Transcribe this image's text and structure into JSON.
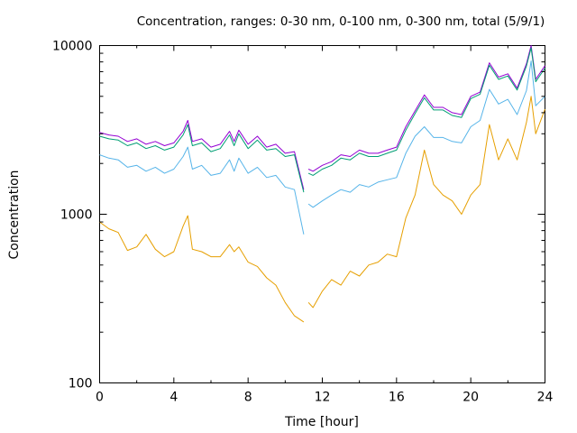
{
  "chart_data": {
    "type": "line",
    "title": "Concentration, ranges: 0-30 nm, 0-100 nm, 0-300 nm, total (5/9/1)",
    "xlabel": "Time [hour]",
    "ylabel": "Concentration",
    "xlim": [
      0,
      24
    ],
    "ylim": [
      100,
      10000
    ],
    "yscale": "log",
    "grid": false,
    "legend": "none",
    "x_ticks": [
      0,
      4,
      8,
      12,
      16,
      20,
      24
    ],
    "x_tick_labels": [
      "0",
      "4",
      "8",
      "12",
      "16",
      "20",
      "24"
    ],
    "y_ticks": [
      100,
      1000,
      10000
    ],
    "y_tick_labels": [
      "100",
      "1000",
      "10000"
    ],
    "x": [
      0,
      0.5,
      1,
      1.5,
      2,
      2.5,
      3,
      3.5,
      4,
      4.5,
      4.75,
      5,
      5.5,
      6,
      6.5,
      7,
      7.25,
      7.5,
      8,
      8.5,
      9,
      9.5,
      10,
      10.5,
      11,
      11.25,
      11.5,
      12,
      12.5,
      13,
      13.5,
      14,
      14.5,
      15,
      15.5,
      16,
      16.5,
      17,
      17.5,
      18,
      18.5,
      19,
      19.5,
      20,
      20.5,
      21,
      21.5,
      22,
      22.5,
      23,
      23.25,
      23.5,
      24
    ],
    "segment_breaks_after_x": [
      11
    ],
    "series": [
      {
        "color": "#9400d3",
        "values": [
          3050,
          2950,
          2900,
          2700,
          2800,
          2600,
          2700,
          2550,
          2650,
          3100,
          3600,
          2700,
          2800,
          2500,
          2600,
          3100,
          2700,
          3150,
          2600,
          2900,
          2500,
          2600,
          2300,
          2350,
          1400,
          1850,
          1800,
          1950,
          2050,
          2250,
          2200,
          2400,
          2300,
          2300,
          2400,
          2500,
          3300,
          4100,
          5100,
          4300,
          4300,
          4000,
          3900,
          5000,
          5300,
          7900,
          6500,
          6800,
          5600,
          7800,
          10000,
          6300,
          7600
        ]
      },
      {
        "color": "#009e73",
        "values": [
          2900,
          2800,
          2750,
          2550,
          2650,
          2450,
          2550,
          2400,
          2500,
          2950,
          3400,
          2550,
          2650,
          2350,
          2450,
          2950,
          2550,
          3000,
          2450,
          2750,
          2400,
          2450,
          2200,
          2250,
          1350,
          1750,
          1700,
          1850,
          1950,
          2150,
          2100,
          2300,
          2200,
          2200,
          2300,
          2400,
          3150,
          3950,
          4900,
          4150,
          4150,
          3850,
          3750,
          4850,
          5150,
          7650,
          6300,
          6600,
          5450,
          7550,
          9700,
          6100,
          7350
        ]
      },
      {
        "color": "#56b4e9",
        "values": [
          2250,
          2150,
          2100,
          1900,
          1950,
          1800,
          1900,
          1750,
          1850,
          2200,
          2500,
          1850,
          1950,
          1700,
          1750,
          2100,
          1800,
          2150,
          1750,
          1900,
          1650,
          1700,
          1450,
          1400,
          760,
          1150,
          1100,
          1200,
          1300,
          1400,
          1350,
          1500,
          1450,
          1550,
          1600,
          1650,
          2300,
          2900,
          3300,
          2850,
          2850,
          2700,
          2650,
          3300,
          3600,
          5500,
          4500,
          4800,
          3900,
          5400,
          8100,
          4400,
          5000
        ]
      },
      {
        "color": "#e69f00",
        "values": [
          900,
          820,
          780,
          610,
          640,
          760,
          620,
          560,
          600,
          850,
          980,
          620,
          600,
          560,
          560,
          660,
          600,
          640,
          520,
          490,
          420,
          380,
          300,
          250,
          230,
          300,
          280,
          350,
          410,
          380,
          460,
          430,
          500,
          520,
          580,
          560,
          950,
          1300,
          2400,
          1500,
          1300,
          1200,
          1000,
          1300,
          1500,
          3400,
          2100,
          2800,
          2100,
          3500,
          5000,
          3000,
          4200
        ]
      }
    ]
  }
}
